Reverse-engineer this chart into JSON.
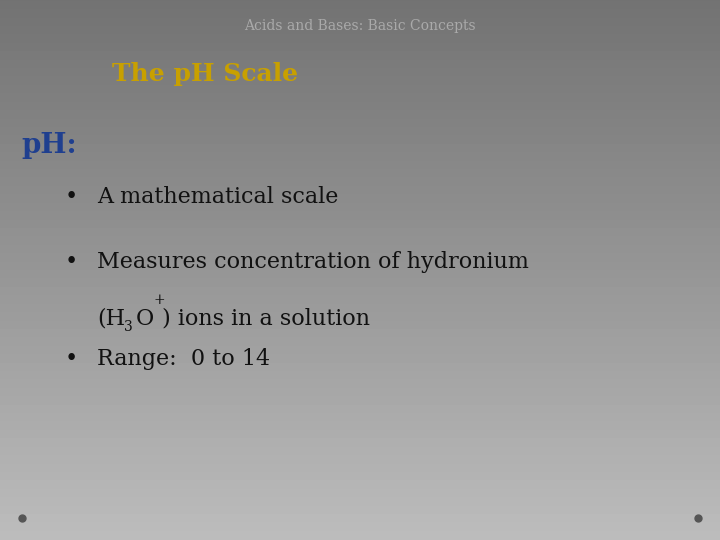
{
  "title": "Acids and Bases: Basic Concepts",
  "subtitle": "The pH Scale",
  "subtitle_color": "#C8A000",
  "title_color": "#aaaaaa",
  "ph_label": "pH:",
  "ph_color": "#1F3F8F",
  "bullet_color": "#111111",
  "dot_color": "#555555",
  "figsize": [
    7.2,
    5.4
  ],
  "dpi": 100,
  "bg_color_top": "#f5f5f5",
  "bg_color_bottom": "#d8d8d8"
}
